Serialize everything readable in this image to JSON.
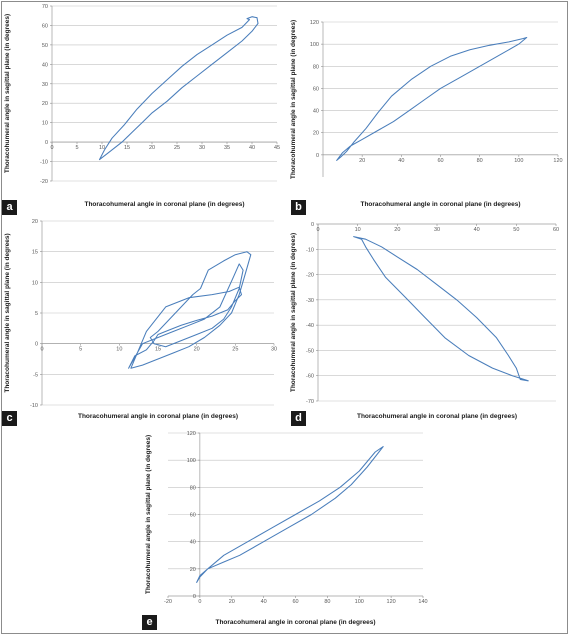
{
  "figure": {
    "panel_labels": [
      "a",
      "b",
      "c",
      "d",
      "e"
    ]
  },
  "chart_data": [
    {
      "id": "a",
      "type": "line",
      "xlabel": "Thoracohumeral angle in coronal plane (in degrees)",
      "ylabel": "Thoracohumeral angle in sagittal plane (in degrees)",
      "xlim": [
        0,
        45
      ],
      "ylim": [
        -20,
        70
      ],
      "xticks": [
        0,
        5,
        10,
        15,
        20,
        25,
        30,
        35,
        40,
        45
      ],
      "yticks": [
        -20,
        -10,
        0,
        10,
        20,
        30,
        40,
        50,
        60,
        70
      ],
      "grid": "horizontal",
      "series": [
        {
          "x": [
            9.5,
            11,
            12.5,
            14,
            16,
            18,
            20,
            23,
            26,
            29,
            32,
            35,
            38,
            40,
            41.2,
            41,
            40,
            39,
            39.5,
            38,
            35,
            32,
            29,
            26,
            23,
            20,
            17,
            14.5,
            12,
            10.5,
            9.5
          ],
          "y": [
            -9,
            -6,
            -3,
            0,
            5,
            10,
            15,
            21,
            28,
            34,
            40,
            46,
            52,
            57,
            61,
            64,
            64.5,
            63.5,
            63,
            59,
            55,
            50,
            45,
            39,
            32,
            25,
            17,
            9,
            2,
            -4,
            -9
          ]
        }
      ]
    },
    {
      "id": "b",
      "type": "line",
      "xlabel": "Thoracohumeral angle in coronal plane (in degrees)",
      "ylabel": "Thoracohumeral angle in sagittal plane (in degrees)",
      "xlim": [
        0,
        120
      ],
      "ylim": [
        -20,
        120
      ],
      "xticks": [
        0,
        20,
        40,
        60,
        80,
        100,
        120
      ],
      "yticks": [
        0,
        20,
        40,
        60,
        80,
        100,
        120
      ],
      "grid": "horizontal",
      "series": [
        {
          "x": [
            7,
            10,
            14,
            20,
            28,
            36,
            44,
            52,
            60,
            70,
            80,
            90,
            100,
            104,
            102,
            95,
            85,
            75,
            65,
            55,
            45,
            35,
            28,
            22,
            16,
            12,
            9,
            7
          ],
          "y": [
            -5,
            2,
            8,
            14,
            22,
            30,
            40,
            50,
            60,
            70,
            80,
            90,
            100,
            106,
            105,
            102,
            99,
            95,
            89,
            80,
            68,
            53,
            38,
            24,
            12,
            3,
            -2,
            -5
          ]
        }
      ]
    },
    {
      "id": "c",
      "type": "line",
      "xlabel": "Thoracohumeral angle in coronal plane (in degrees)",
      "ylabel": "Thoracohumeral angle in sagittal plane (in degrees)",
      "xlim": [
        0,
        30
      ],
      "ylim": [
        -10,
        20
      ],
      "xticks": [
        0,
        5,
        10,
        15,
        20,
        25,
        30
      ],
      "yticks": [
        -10,
        -5,
        0,
        5,
        10,
        15,
        20
      ],
      "grid": "horizontal",
      "series": [
        {
          "x": [
            11.5,
            13,
            15,
            17,
            19,
            21,
            23,
            24.5,
            25.5,
            26.2,
            27,
            26.5,
            25,
            23.5,
            21.5,
            20.5,
            19.5,
            18,
            16.5,
            15,
            14,
            14.5,
            16,
            18,
            20,
            22,
            23.5,
            24.5,
            25.5,
            26,
            25.5,
            24.8,
            23,
            21,
            19,
            17,
            15,
            13,
            11.2,
            12,
            13.5,
            14.5,
            15,
            16,
            18,
            20,
            22,
            24,
            25,
            25.8,
            25.5,
            24.2,
            22,
            19,
            16,
            13.5,
            11.5
          ],
          "y": [
            -4,
            -3.5,
            -2.5,
            -1.5,
            -0.5,
            1,
            3,
            5,
            8,
            11,
            14.5,
            15,
            14.5,
            13.5,
            12,
            9,
            8,
            6,
            4,
            2,
            1,
            0,
            -0.5,
            0.5,
            1.5,
            2.5,
            4,
            6,
            9,
            12,
            13,
            11,
            6,
            4,
            3,
            2,
            1,
            0,
            -4,
            -2,
            -1,
            0.5,
            1.5,
            2,
            3,
            3.8,
            4.5,
            5.5,
            7,
            8,
            9.2,
            8.5,
            8,
            7.5,
            6,
            2,
            -4
          ]
        }
      ]
    },
    {
      "id": "d",
      "type": "line",
      "xlabel": "Thoracohumeral angle in coronal plane (in degrees)",
      "ylabel": "Thoracohumeral angle in sagittal plane (in degrees)",
      "xlim": [
        0,
        60
      ],
      "ylim": [
        -70,
        0
      ],
      "xticks": [
        0,
        10,
        20,
        30,
        40,
        50,
        60
      ],
      "yticks": [
        0,
        -10,
        -20,
        -30,
        -40,
        -50,
        -60,
        -70
      ],
      "grid": "horizontal",
      "series": [
        {
          "x": [
            9,
            12,
            16,
            20,
            25,
            30,
            35,
            40,
            45,
            48,
            50,
            51,
            53,
            52,
            49,
            44,
            38,
            32,
            27,
            22,
            17,
            14,
            12,
            11,
            9
          ],
          "y": [
            -5,
            -6,
            -9,
            -13,
            -18,
            -24,
            -30,
            -37,
            -45,
            -52,
            -57,
            -61.5,
            -62,
            -61.5,
            -60,
            -57,
            -52,
            -45,
            -37,
            -29,
            -21,
            -14,
            -9,
            -6,
            -5
          ]
        }
      ]
    },
    {
      "id": "e",
      "type": "line",
      "xlabel": "Thoracohumeral angle in coronal plane (in degrees)",
      "ylabel": "Thoracohumeral angle in sagittal plane (in degrees)",
      "xlim": [
        -20,
        140
      ],
      "ylim": [
        0,
        120
      ],
      "xticks": [
        -20,
        0,
        20,
        40,
        60,
        80,
        100,
        120,
        140
      ],
      "yticks": [
        0,
        20,
        40,
        60,
        80,
        100,
        120
      ],
      "grid": "horizontal",
      "series": [
        {
          "x": [
            -2,
            0,
            5,
            15,
            25,
            40,
            55,
            70,
            85,
            95,
            105,
            115,
            110,
            100,
            88,
            75,
            60,
            45,
            30,
            15,
            5,
            0,
            -2
          ],
          "y": [
            10,
            15,
            20,
            25,
            30,
            40,
            50,
            60,
            72,
            82,
            95,
            110,
            106,
            92,
            80,
            70,
            60,
            50,
            40,
            30,
            20,
            14,
            10
          ]
        }
      ]
    }
  ]
}
